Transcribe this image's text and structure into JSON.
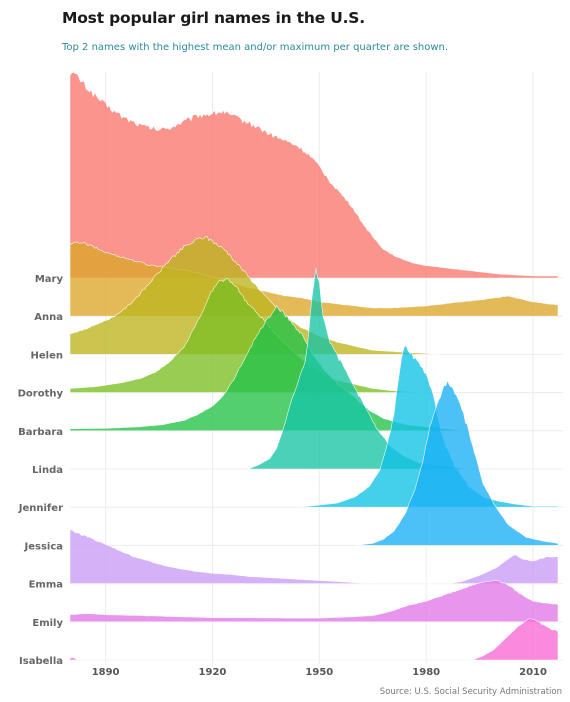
{
  "chart_data": {
    "type": "area",
    "title": "Most popular girl names in the U.S.",
    "subtitle": "Top 2 names with the highest mean and/or maximum per quarter are shown.",
    "source": "Source: U.S. Social Security Administration",
    "xlim": [
      1880,
      2017
    ],
    "x_ticks": [
      "1890",
      "1920",
      "1950",
      "1980",
      "2010"
    ],
    "grid": "vertical",
    "series": [
      {
        "name": "Mary",
        "color": "#f8766d",
        "points": [
          [
            1880,
            1.0
          ],
          [
            1882,
            0.98
          ],
          [
            1885,
            0.92
          ],
          [
            1890,
            0.84
          ],
          [
            1895,
            0.78
          ],
          [
            1900,
            0.74
          ],
          [
            1905,
            0.72
          ],
          [
            1908,
            0.73
          ],
          [
            1912,
            0.76
          ],
          [
            1916,
            0.79
          ],
          [
            1920,
            0.8
          ],
          [
            1923,
            0.81
          ],
          [
            1925,
            0.79
          ],
          [
            1928,
            0.77
          ],
          [
            1932,
            0.74
          ],
          [
            1936,
            0.7
          ],
          [
            1940,
            0.67
          ],
          [
            1944,
            0.64
          ],
          [
            1947,
            0.6
          ],
          [
            1950,
            0.54
          ],
          [
            1953,
            0.47
          ],
          [
            1956,
            0.41
          ],
          [
            1959,
            0.35
          ],
          [
            1962,
            0.27
          ],
          [
            1965,
            0.2
          ],
          [
            1968,
            0.14
          ],
          [
            1972,
            0.1
          ],
          [
            1976,
            0.075
          ],
          [
            1980,
            0.06
          ],
          [
            1985,
            0.05
          ],
          [
            1990,
            0.04
          ],
          [
            1995,
            0.03
          ],
          [
            2000,
            0.02
          ],
          [
            2005,
            0.015
          ],
          [
            2010,
            0.01
          ],
          [
            2017,
            0.01
          ]
        ]
      },
      {
        "name": "Anna",
        "color": "#dda72a",
        "points": [
          [
            1880,
            0.35
          ],
          [
            1883,
            0.36
          ],
          [
            1886,
            0.34
          ],
          [
            1890,
            0.31
          ],
          [
            1894,
            0.29
          ],
          [
            1898,
            0.27
          ],
          [
            1902,
            0.25
          ],
          [
            1906,
            0.24
          ],
          [
            1910,
            0.23
          ],
          [
            1914,
            0.22
          ],
          [
            1918,
            0.2
          ],
          [
            1922,
            0.18
          ],
          [
            1926,
            0.16
          ],
          [
            1930,
            0.14
          ],
          [
            1935,
            0.12
          ],
          [
            1940,
            0.1
          ],
          [
            1945,
            0.09
          ],
          [
            1950,
            0.07
          ],
          [
            1955,
            0.06
          ],
          [
            1960,
            0.05
          ],
          [
            1965,
            0.04
          ],
          [
            1970,
            0.04
          ],
          [
            1975,
            0.045
          ],
          [
            1980,
            0.05
          ],
          [
            1985,
            0.06
          ],
          [
            1990,
            0.07
          ],
          [
            1995,
            0.08
          ],
          [
            2000,
            0.09
          ],
          [
            2003,
            0.1
          ],
          [
            2006,
            0.085
          ],
          [
            2010,
            0.07
          ],
          [
            2014,
            0.06
          ],
          [
            2017,
            0.055
          ]
        ]
      },
      {
        "name": "Helen",
        "color": "#bcb51f",
        "points": [
          [
            1880,
            0.1
          ],
          [
            1884,
            0.12
          ],
          [
            1888,
            0.15
          ],
          [
            1892,
            0.18
          ],
          [
            1896,
            0.23
          ],
          [
            1900,
            0.3
          ],
          [
            1904,
            0.38
          ],
          [
            1908,
            0.46
          ],
          [
            1912,
            0.52
          ],
          [
            1916,
            0.56
          ],
          [
            1918,
            0.57
          ],
          [
            1920,
            0.55
          ],
          [
            1924,
            0.5
          ],
          [
            1928,
            0.42
          ],
          [
            1932,
            0.34
          ],
          [
            1936,
            0.26
          ],
          [
            1940,
            0.19
          ],
          [
            1945,
            0.13
          ],
          [
            1950,
            0.09
          ],
          [
            1955,
            0.06
          ],
          [
            1960,
            0.04
          ],
          [
            1965,
            0.02
          ],
          [
            1970,
            0.015
          ],
          [
            1974,
            0.01
          ],
          [
            1980,
            0.005
          ],
          [
            1984,
            0.0
          ]
        ]
      },
      {
        "name": "Dorothy",
        "color": "#7cbe23",
        "points": [
          [
            1880,
            0.02
          ],
          [
            1888,
            0.03
          ],
          [
            1895,
            0.05
          ],
          [
            1900,
            0.07
          ],
          [
            1904,
            0.1
          ],
          [
            1908,
            0.15
          ],
          [
            1912,
            0.22
          ],
          [
            1915,
            0.32
          ],
          [
            1918,
            0.42
          ],
          [
            1920,
            0.5
          ],
          [
            1922,
            0.54
          ],
          [
            1924,
            0.55
          ],
          [
            1926,
            0.53
          ],
          [
            1928,
            0.48
          ],
          [
            1930,
            0.43
          ],
          [
            1934,
            0.36
          ],
          [
            1938,
            0.28
          ],
          [
            1942,
            0.21
          ],
          [
            1946,
            0.15
          ],
          [
            1950,
            0.1
          ],
          [
            1955,
            0.06
          ],
          [
            1960,
            0.04
          ],
          [
            1965,
            0.02
          ],
          [
            1970,
            0.01
          ],
          [
            1975,
            0.005
          ],
          [
            1980,
            0.0
          ]
        ]
      },
      {
        "name": "Barbara",
        "color": "#22c148",
        "points": [
          [
            1880,
            0.01
          ],
          [
            1890,
            0.012
          ],
          [
            1900,
            0.02
          ],
          [
            1906,
            0.03
          ],
          [
            1912,
            0.05
          ],
          [
            1916,
            0.08
          ],
          [
            1920,
            0.12
          ],
          [
            1923,
            0.17
          ],
          [
            1926,
            0.25
          ],
          [
            1929,
            0.35
          ],
          [
            1932,
            0.45
          ],
          [
            1935,
            0.53
          ],
          [
            1937,
            0.58
          ],
          [
            1938,
            0.6
          ],
          [
            1940,
            0.57
          ],
          [
            1942,
            0.53
          ],
          [
            1945,
            0.47
          ],
          [
            1948,
            0.38
          ],
          [
            1951,
            0.3
          ],
          [
            1955,
            0.23
          ],
          [
            1960,
            0.16
          ],
          [
            1964,
            0.1
          ],
          [
            1968,
            0.06
          ],
          [
            1972,
            0.04
          ],
          [
            1976,
            0.025
          ],
          [
            1980,
            0.02
          ],
          [
            1985,
            0.01
          ],
          [
            1992,
            0.0
          ]
        ]
      },
      {
        "name": "Linda",
        "color": "#17c4a4",
        "points": [
          [
            1930,
            0.0
          ],
          [
            1933,
            0.02
          ],
          [
            1936,
            0.05
          ],
          [
            1938,
            0.1
          ],
          [
            1940,
            0.2
          ],
          [
            1942,
            0.32
          ],
          [
            1944,
            0.42
          ],
          [
            1946,
            0.52
          ],
          [
            1947,
            0.65
          ],
          [
            1948,
            0.85
          ],
          [
            1949,
            0.98
          ],
          [
            1950,
            0.9
          ],
          [
            1951,
            0.75
          ],
          [
            1953,
            0.62
          ],
          [
            1956,
            0.52
          ],
          [
            1959,
            0.42
          ],
          [
            1962,
            0.33
          ],
          [
            1966,
            0.2
          ],
          [
            1970,
            0.11
          ],
          [
            1974,
            0.06
          ],
          [
            1978,
            0.03
          ],
          [
            1982,
            0.02
          ],
          [
            1987,
            0.01
          ],
          [
            1992,
            0.0
          ]
        ]
      },
      {
        "name": "Jennifer",
        "color": "#10c2e6",
        "points": [
          [
            1944,
            0.0
          ],
          [
            1950,
            0.01
          ],
          [
            1955,
            0.02
          ],
          [
            1960,
            0.05
          ],
          [
            1964,
            0.1
          ],
          [
            1967,
            0.18
          ],
          [
            1969,
            0.3
          ],
          [
            1971,
            0.45
          ],
          [
            1972,
            0.6
          ],
          [
            1973,
            0.72
          ],
          [
            1974,
            0.78
          ],
          [
            1976,
            0.74
          ],
          [
            1978,
            0.7
          ],
          [
            1980,
            0.65
          ],
          [
            1982,
            0.55
          ],
          [
            1983,
            0.45
          ],
          [
            1985,
            0.32
          ],
          [
            1988,
            0.2
          ],
          [
            1992,
            0.1
          ],
          [
            1996,
            0.05
          ],
          [
            2000,
            0.03
          ],
          [
            2005,
            0.015
          ],
          [
            2010,
            0.005
          ],
          [
            2017,
            0.005
          ]
        ]
      },
      {
        "name": "Jessica",
        "color": "#1ab0f5",
        "points": [
          [
            1960,
            0.0
          ],
          [
            1965,
            0.01
          ],
          [
            1968,
            0.03
          ],
          [
            1971,
            0.07
          ],
          [
            1974,
            0.15
          ],
          [
            1977,
            0.28
          ],
          [
            1979,
            0.4
          ],
          [
            1981,
            0.58
          ],
          [
            1983,
            0.68
          ],
          [
            1985,
            0.77
          ],
          [
            1986,
            0.8
          ],
          [
            1988,
            0.74
          ],
          [
            1990,
            0.66
          ],
          [
            1992,
            0.55
          ],
          [
            1994,
            0.42
          ],
          [
            1996,
            0.3
          ],
          [
            1999,
            0.2
          ],
          [
            2003,
            0.1
          ],
          [
            2008,
            0.04
          ],
          [
            2013,
            0.02
          ],
          [
            2017,
            0.01
          ]
        ]
      },
      {
        "name": "Emma",
        "color": "#c99cf5",
        "points": [
          [
            1880,
            0.26
          ],
          [
            1883,
            0.24
          ],
          [
            1886,
            0.22
          ],
          [
            1890,
            0.19
          ],
          [
            1894,
            0.16
          ],
          [
            1898,
            0.13
          ],
          [
            1902,
            0.11
          ],
          [
            1906,
            0.09
          ],
          [
            1910,
            0.075
          ],
          [
            1915,
            0.06
          ],
          [
            1920,
            0.05
          ],
          [
            1925,
            0.045
          ],
          [
            1930,
            0.035
          ],
          [
            1935,
            0.03
          ],
          [
            1940,
            0.025
          ],
          [
            1945,
            0.02
          ],
          [
            1950,
            0.015
          ],
          [
            1955,
            0.01
          ],
          [
            1960,
            0.005
          ],
          [
            1965,
            0.0
          ],
          [
            1986,
            0.0
          ],
          [
            1990,
            0.01
          ],
          [
            1995,
            0.04
          ],
          [
            2000,
            0.08
          ],
          [
            2003,
            0.12
          ],
          [
            2005,
            0.14
          ],
          [
            2007,
            0.12
          ],
          [
            2010,
            0.11
          ],
          [
            2014,
            0.13
          ],
          [
            2017,
            0.13
          ]
        ]
      },
      {
        "name": "Emily",
        "color": "#e277e8",
        "points": [
          [
            1880,
            0.035
          ],
          [
            1885,
            0.04
          ],
          [
            1890,
            0.035
          ],
          [
            1900,
            0.03
          ],
          [
            1910,
            0.025
          ],
          [
            1920,
            0.02
          ],
          [
            1930,
            0.02
          ],
          [
            1940,
            0.018
          ],
          [
            1950,
            0.018
          ],
          [
            1960,
            0.025
          ],
          [
            1965,
            0.03
          ],
          [
            1970,
            0.05
          ],
          [
            1975,
            0.08
          ],
          [
            1980,
            0.1
          ],
          [
            1985,
            0.13
          ],
          [
            1990,
            0.16
          ],
          [
            1995,
            0.19
          ],
          [
            1998,
            0.2
          ],
          [
            2000,
            0.2
          ],
          [
            2003,
            0.18
          ],
          [
            2006,
            0.14
          ],
          [
            2010,
            0.1
          ],
          [
            2014,
            0.09
          ],
          [
            2017,
            0.085
          ]
        ]
      },
      {
        "name": "Isabella",
        "color": "#f869d5",
        "points": [
          [
            1880,
            0.01
          ],
          [
            1881,
            0.012
          ],
          [
            1882,
            0.0
          ],
          [
            1993,
            0.0
          ],
          [
            1996,
            0.02
          ],
          [
            1999,
            0.05
          ],
          [
            2002,
            0.1
          ],
          [
            2005,
            0.15
          ],
          [
            2008,
            0.19
          ],
          [
            2009,
            0.2
          ],
          [
            2011,
            0.19
          ],
          [
            2013,
            0.17
          ],
          [
            2015,
            0.15
          ],
          [
            2017,
            0.14
          ]
        ]
      }
    ]
  }
}
